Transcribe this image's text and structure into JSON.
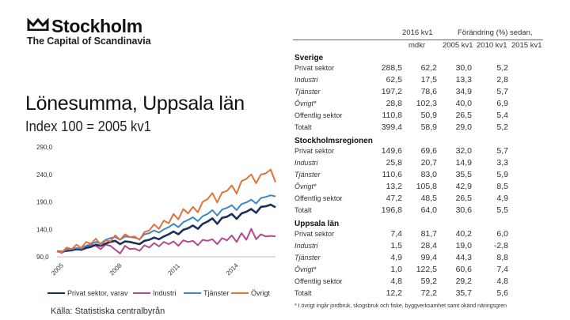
{
  "brand": {
    "name": "Stockholm",
    "tagline": "The Capital of Scandinavia",
    "icon": "crown-icon",
    "color": "#111111"
  },
  "title": "Lönesumma, Uppsala län",
  "subtitle": "Index 100 = 2005 kv1",
  "source": "Källa: Statistiska centralbyrån",
  "chart_data": {
    "type": "line",
    "title": "Lönesumma, Uppsala län",
    "subtitle": "Index 100 = 2005 kv1",
    "x_labels": [
      "2005",
      "2008",
      "2011",
      "2014"
    ],
    "x_label_quarters": [
      0,
      12,
      24,
      36
    ],
    "n_quarters": 46,
    "y_ticks": [
      "290,0",
      "240,0",
      "190,0",
      "140,0",
      "90,0"
    ],
    "y_tick_values": [
      290,
      240,
      190,
      140,
      90
    ],
    "ylim": [
      90,
      290
    ],
    "legend_position": "bottom",
    "series": [
      {
        "name": "Privat sektor, varav",
        "color": "#1f2f5c",
        "values": [
          100,
          99,
          101,
          102,
          104,
          103,
          106,
          108,
          112,
          110,
          114,
          117,
          119,
          113,
          118,
          117,
          115,
          113,
          119,
          121,
          125,
          122,
          127,
          131,
          136,
          131,
          139,
          142,
          147,
          141,
          150,
          154,
          160,
          150,
          161,
          163,
          168,
          159,
          169,
          172,
          177,
          170,
          181,
          182,
          185,
          180
        ]
      },
      {
        "name": "Industri",
        "color": "#b24a8c",
        "values": [
          100,
          97,
          104,
          101,
          106,
          102,
          108,
          112,
          110,
          104,
          112,
          110,
          103,
          96,
          110,
          104,
          105,
          101,
          111,
          107,
          115,
          109,
          117,
          113,
          118,
          110,
          120,
          117,
          119,
          111,
          121,
          119,
          122,
          113,
          124,
          120,
          129,
          117,
          133,
          121,
          141,
          122,
          131,
          127,
          128,
          127
        ]
      },
      {
        "name": "Tjänster",
        "color": "#3e86c8",
        "values": [
          100,
          99,
          103,
          104,
          106,
          105,
          110,
          113,
          117,
          114,
          121,
          124,
          126,
          121,
          127,
          126,
          125,
          122,
          131,
          133,
          138,
          134,
          140,
          144,
          150,
          144,
          153,
          157,
          162,
          155,
          164,
          168,
          175,
          165,
          176,
          179,
          184,
          175,
          186,
          189,
          194,
          187,
          197,
          199,
          202,
          200
        ]
      },
      {
        "name": "Övrigt",
        "color": "#e0733c",
        "values": [
          100,
          98,
          107,
          104,
          112,
          106,
          117,
          114,
          123,
          112,
          120,
          118,
          129,
          121,
          131,
          126,
          127,
          121,
          135,
          138,
          149,
          141,
          156,
          151,
          168,
          158,
          177,
          169,
          181,
          171,
          190,
          195,
          206,
          189,
          207,
          210,
          220,
          205,
          228,
          232,
          240,
          224,
          240,
          242,
          249,
          226
        ]
      }
    ]
  },
  "table": {
    "header_period": "2016 kv1",
    "header_change": "Förändring (%) sedan",
    "header_unit": "mdkr",
    "header_cols": [
      "2005 kv1",
      "2010 kv1",
      "2015 kv1"
    ],
    "groups": [
      {
        "name": "Sverige",
        "rows": [
          {
            "label": "Privat sektor",
            "italic": false,
            "values": [
              "288,5",
              "62,2",
              "30,0",
              "5,2"
            ]
          },
          {
            "label": "Industri",
            "italic": true,
            "values": [
              "62,5",
              "17,5",
              "13,3",
              "2,8"
            ]
          },
          {
            "label": "Tjänster",
            "italic": true,
            "values": [
              "197,2",
              "78,6",
              "34,9",
              "5,7"
            ]
          },
          {
            "label": "Övrigt*",
            "italic": true,
            "values": [
              "28,8",
              "102,3",
              "40,0",
              "6,9"
            ]
          },
          {
            "label": "Offentlig sektor",
            "italic": false,
            "values": [
              "110,8",
              "50,9",
              "26,5",
              "5,4"
            ]
          },
          {
            "label": "Totalt",
            "italic": false,
            "values": [
              "399,4",
              "58,9",
              "29,0",
              "5,2"
            ]
          }
        ]
      },
      {
        "name": "Stockholmsregionen",
        "rows": [
          {
            "label": "Privat sektor",
            "italic": false,
            "values": [
              "149,6",
              "69,6",
              "32,0",
              "5,7"
            ]
          },
          {
            "label": "Industri",
            "italic": true,
            "values": [
              "25,8",
              "20,7",
              "14,9",
              "3,3"
            ]
          },
          {
            "label": "Tjänster",
            "italic": true,
            "values": [
              "110,6",
              "83,0",
              "35,5",
              "5,9"
            ]
          },
          {
            "label": "Övrigt*",
            "italic": true,
            "values": [
              "13,2",
              "105,8",
              "42,9",
              "8,5"
            ]
          },
          {
            "label": "Offentlig sektor",
            "italic": false,
            "values": [
              "47,2",
              "48,5",
              "26,5",
              "4,9"
            ]
          },
          {
            "label": "Totalt",
            "italic": false,
            "values": [
              "196,8",
              "64,0",
              "30,6",
              "5,5"
            ]
          }
        ]
      },
      {
        "name": "Uppsala län",
        "rows": [
          {
            "label": "Privat sektor",
            "italic": false,
            "values": [
              "7,4",
              "81,7",
              "40,2",
              "6,0"
            ]
          },
          {
            "label": "Industri",
            "italic": true,
            "values": [
              "1,5",
              "28,4",
              "19,0",
              "-2,8"
            ]
          },
          {
            "label": "Tjänster",
            "italic": true,
            "values": [
              "4,9",
              "99,4",
              "44,3",
              "8,8"
            ]
          },
          {
            "label": "Övrigt*",
            "italic": true,
            "values": [
              "1,0",
              "122,5",
              "60,6",
              "7,4"
            ]
          },
          {
            "label": "Offentlig sektor",
            "italic": false,
            "values": [
              "4,8",
              "59,2",
              "29,2",
              "4,8"
            ]
          },
          {
            "label": "Totalt",
            "italic": false,
            "values": [
              "12,2",
              "72,2",
              "35,7",
              "5,6"
            ]
          }
        ]
      }
    ],
    "footnote": "* I övrigt ingår jordbruk, skogsbruk och fiske, byggverksamhet samt okänd näringsgren"
  }
}
